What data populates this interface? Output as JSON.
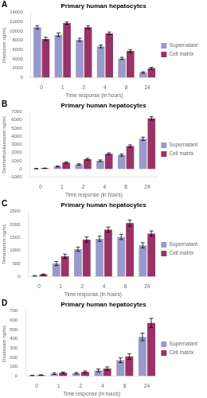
{
  "chart_data": [
    {
      "type": "bar",
      "title": "Primary human hepatocytes",
      "annotations": [
        "A"
      ],
      "xlabel": "Time response (in hours)",
      "ylabel": "Diazepam ng/mL",
      "categories": [
        "0",
        "1",
        "2",
        "4",
        "8",
        "24"
      ],
      "series": [
        {
          "name": "Supernatant",
          "color": "#9999cc",
          "values": [
            10800,
            9200,
            8100,
            6700,
            4100,
            1100
          ],
          "errors": [
            350,
            400,
            350,
            300,
            250,
            150
          ]
        },
        {
          "name": "Cell matrix",
          "color": "#993366",
          "values": [
            8300,
            11700,
            10800,
            9500,
            5700,
            2000
          ],
          "errors": [
            350,
            250,
            350,
            280,
            300,
            200
          ]
        }
      ],
      "ylim": [
        0,
        14000
      ],
      "yticks": [
        0,
        2000,
        4000,
        6000,
        8000,
        10000,
        12000,
        14000
      ],
      "grid": false,
      "legend": "right"
    },
    {
      "type": "bar",
      "title": "Primary human hepatocytes",
      "annotations": [
        "B"
      ],
      "xlabel": "Time response (in hours)",
      "ylabel": "Desmethyldiazepam ng/mL",
      "categories": [
        "0",
        "1",
        "2",
        "4",
        "8",
        "24"
      ],
      "series": [
        {
          "name": "Supernatant",
          "color": "#9999cc",
          "values": [
            30,
            300,
            550,
            1000,
            1700,
            3700
          ],
          "errors": [
            20,
            70,
            80,
            100,
            120,
            200
          ]
        },
        {
          "name": "Cell matrix",
          "color": "#993366",
          "values": [
            80,
            780,
            1200,
            1850,
            2800,
            6200
          ],
          "errors": [
            20,
            90,
            100,
            120,
            150,
            200
          ]
        }
      ],
      "ylim": [
        -1000,
        7000
      ],
      "yticks": [
        -1000,
        0,
        1000,
        2000,
        3000,
        4000,
        5000,
        6000,
        7000
      ],
      "grid": false,
      "legend": "right"
    },
    {
      "type": "bar",
      "title": "Primary human hepatocytes",
      "annotations": [
        "C"
      ],
      "xlabel": "Time response (in hours)",
      "ylabel": "Temazepam ng/mL",
      "categories": [
        "0",
        "1",
        "2",
        "4",
        "8",
        "24"
      ],
      "series": [
        {
          "name": "Supernatant",
          "color": "#9999cc",
          "values": [
            20,
            500,
            1050,
            1450,
            1520,
            1200
          ],
          "errors": [
            15,
            80,
            80,
            100,
            100,
            100
          ]
        },
        {
          "name": "Cell matrix",
          "color": "#993366",
          "values": [
            80,
            780,
            1420,
            1800,
            2050,
            1650
          ],
          "errors": [
            15,
            80,
            100,
            100,
            120,
            100
          ]
        }
      ],
      "ylim": [
        0,
        2500
      ],
      "yticks": [
        0,
        500,
        1000,
        1500,
        2000,
        2500
      ],
      "grid": false,
      "legend": "right"
    },
    {
      "type": "bar",
      "title": "Primary human hepatocytes",
      "annotations": [
        "D"
      ],
      "xlabel": "Time response (in hours)",
      "ylabel": "Oxazepam ng/mL",
      "categories": [
        "0",
        "1",
        "2",
        "4",
        "8",
        "24"
      ],
      "series": [
        {
          "name": "Supernatant",
          "color": "#9999cc",
          "values": [
            5,
            25,
            30,
            60,
            170,
            420
          ],
          "errors": [
            3,
            8,
            8,
            15,
            25,
            40
          ]
        },
        {
          "name": "Cell matrix",
          "color": "#993366",
          "values": [
            10,
            35,
            45,
            80,
            210,
            570
          ],
          "errors": [
            3,
            8,
            10,
            18,
            30,
            50
          ]
        }
      ],
      "ylim": [
        0,
        700
      ],
      "yticks": [
        0,
        100,
        200,
        300,
        400,
        500,
        600,
        700
      ],
      "grid": false,
      "legend": "right"
    }
  ]
}
